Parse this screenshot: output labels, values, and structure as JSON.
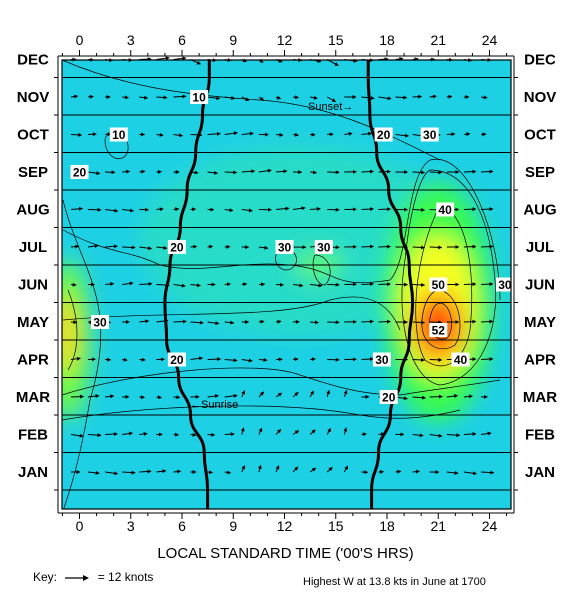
{
  "chart_data": {
    "type": "heatmap",
    "title": "",
    "xlabel": "LOCAL STANDARD TIME ('00'S HRS)",
    "ylabel": "",
    "x_ticks": [
      "0",
      "3",
      "6",
      "9",
      "12",
      "15",
      "18",
      "21",
      "24"
    ],
    "xlim": [
      -1,
      25.5
    ],
    "y_categories": [
      "JAN",
      "FEB",
      "MAR",
      "APR",
      "MAY",
      "JUN",
      "JUL",
      "AUG",
      "SEP",
      "OCT",
      "NOV",
      "DEC"
    ],
    "color_field": "vertical wind speed W, blue (low) to red (high)",
    "peak": {
      "label": "52",
      "hour": 21,
      "month": "MAY"
    },
    "contour_labels": [
      {
        "text": "10",
        "hour": 7,
        "month": "NOV"
      },
      {
        "text": "10",
        "hour": 2.3,
        "month": "OCT"
      },
      {
        "text": "20",
        "hour": 0,
        "month": "SEP"
      },
      {
        "text": "20",
        "hour": 5.7,
        "month": "JUL"
      },
      {
        "text": "20",
        "hour": 5.7,
        "month": "APR"
      },
      {
        "text": "20",
        "hour": 17.8,
        "month": "OCT"
      },
      {
        "text": "20",
        "hour": 18.1,
        "month": "MAR"
      },
      {
        "text": "30",
        "hour": 12,
        "month": "JUL"
      },
      {
        "text": "30",
        "hour": 14.3,
        "month": "JUL"
      },
      {
        "text": "30",
        "hour": 1.2,
        "month": "MAY"
      },
      {
        "text": "30",
        "hour": 17.7,
        "month": "APR"
      },
      {
        "text": "30",
        "hour": 20.5,
        "month": "OCT"
      },
      {
        "text": "30",
        "hour": 24.9,
        "month": "JUN"
      },
      {
        "text": "40",
        "hour": 21.4,
        "month": "AUG"
      },
      {
        "text": "40",
        "hour": 22.3,
        "month": "APR"
      },
      {
        "text": "50",
        "hour": 21,
        "month": "JUN"
      }
    ],
    "sunrise_label": "←Sunrise",
    "sunset_label": "Sunset→",
    "sunrise_hours": [
      7.5,
      7.3,
      6.5,
      5.8,
      5.1,
      5.0,
      5.3,
      5.9,
      6.3,
      6.8,
      7.2,
      7.6
    ],
    "sunset_hours": [
      17.1,
      17.5,
      18.2,
      18.8,
      19.3,
      19.5,
      19.3,
      18.8,
      18.1,
      17.4,
      17.0,
      16.9
    ],
    "key_label": "Key:",
    "key_value": "= 12 knots",
    "note": "Highest W at 13.8 kts in June at 1700"
  }
}
